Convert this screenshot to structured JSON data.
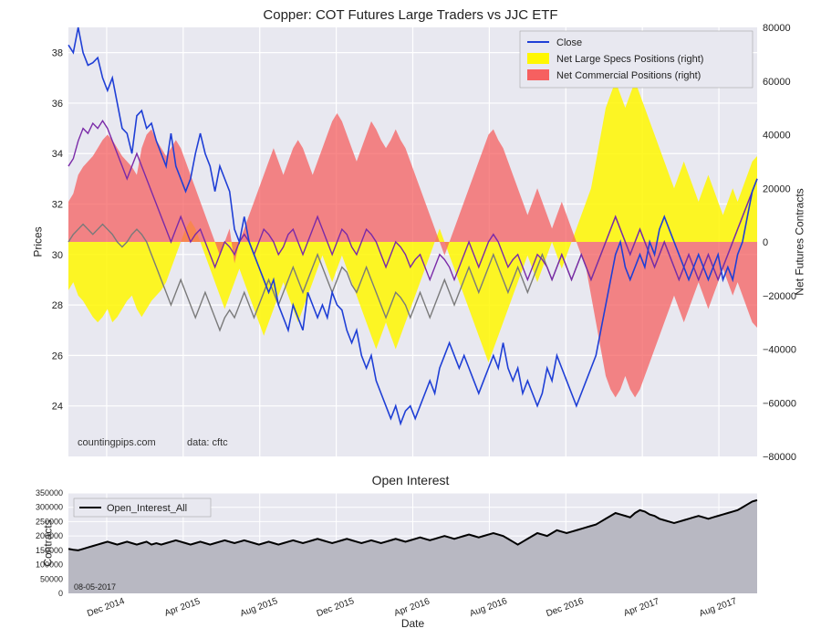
{
  "main": {
    "title": "Copper: COT Futures Large Traders vs JJC ETF",
    "y_left_label": "Prices",
    "y_right_label": "Net Futures Contracts",
    "background_color": "#e8e8f0",
    "grid_color": "#ffffff",
    "grid_width": 1.2,
    "watermark_left": "countingpips.com",
    "watermark_right": "data: cftc",
    "y_left": {
      "min": 22,
      "max": 39,
      "ticks": [
        24,
        26,
        28,
        30,
        32,
        34,
        36,
        38
      ]
    },
    "y_right": {
      "min": -80000,
      "max": 80000,
      "ticks": [
        -80000,
        -60000,
        -40000,
        -20000,
        0,
        20000,
        40000,
        60000,
        80000
      ]
    },
    "x_ticks": [
      "Dec 2014",
      "Apr 2015",
      "Aug 2015",
      "Dec 2015",
      "Apr 2016",
      "Aug 2016",
      "Dec 2016",
      "Apr 2017",
      "Aug 2017"
    ],
    "legend": {
      "items": [
        {
          "label": "Close",
          "type": "line",
          "color": "#1f3fd6"
        },
        {
          "label": "Net Large Specs Positions (right)",
          "type": "fill",
          "color": "#fff700"
        },
        {
          "label": "Net Commercial Positions (right)",
          "type": "fill",
          "color": "#f66060"
        }
      ]
    },
    "close": {
      "color": "#1f3fd6",
      "width": 1.6,
      "data": [
        38.3,
        38.0,
        39.0,
        38.0,
        37.5,
        37.6,
        37.8,
        37.0,
        36.5,
        37.0,
        36.0,
        35.0,
        34.8,
        34.0,
        35.5,
        35.7,
        35.0,
        35.2,
        34.5,
        34.0,
        33.5,
        34.8,
        33.5,
        33.0,
        32.5,
        33.0,
        34.0,
        34.8,
        34.0,
        33.5,
        32.5,
        33.5,
        33.0,
        32.5,
        31.0,
        30.5,
        31.5,
        30.5,
        30.0,
        29.5,
        29.0,
        28.5,
        29.0,
        28.0,
        27.5,
        27.0,
        28.0,
        27.5,
        27.0,
        28.5,
        28.0,
        27.5,
        28.0,
        27.5,
        28.5,
        28.0,
        27.8,
        27.0,
        26.5,
        27.0,
        26.0,
        25.5,
        26.0,
        25.0,
        24.5,
        24.0,
        23.5,
        24.0,
        23.3,
        23.8,
        24.0,
        23.5,
        24.0,
        24.5,
        25.0,
        24.5,
        25.5,
        26.0,
        26.5,
        26.0,
        25.5,
        26.0,
        25.5,
        25.0,
        24.5,
        25.0,
        25.5,
        26.0,
        25.5,
        26.5,
        25.5,
        25.0,
        25.5,
        24.5,
        25.0,
        24.5,
        24.0,
        24.5,
        25.5,
        25.0,
        26.0,
        25.5,
        25.0,
        24.5,
        24.0,
        24.5,
        25.0,
        25.5,
        26.0,
        27.0,
        28.0,
        29.0,
        30.0,
        30.5,
        29.5,
        29.0,
        29.5,
        30.0,
        29.5,
        30.5,
        30.0,
        31.0,
        31.5,
        31.0,
        30.5,
        30.0,
        29.5,
        29.0,
        29.5,
        30.0,
        29.5,
        29.0,
        29.5,
        30.0,
        29.0,
        29.5,
        29.0,
        30.0,
        30.5,
        31.5,
        32.5,
        33.0
      ]
    },
    "specs": {
      "color": "#fff700",
      "alpha": 0.85,
      "data": [
        -18000,
        -15000,
        -20000,
        -22000,
        -25000,
        -28000,
        -30000,
        -28000,
        -25000,
        -30000,
        -28000,
        -25000,
        -22000,
        -20000,
        -25000,
        -28000,
        -25000,
        -22000,
        -20000,
        -18000,
        -15000,
        -10000,
        -5000,
        0,
        5000,
        8000,
        5000,
        0,
        -5000,
        -10000,
        -15000,
        -20000,
        -25000,
        -20000,
        -15000,
        -10000,
        -15000,
        -20000,
        -25000,
        -30000,
        -35000,
        -30000,
        -25000,
        -20000,
        -15000,
        -20000,
        -25000,
        -30000,
        -25000,
        -20000,
        -15000,
        -10000,
        -5000,
        -10000,
        -15000,
        -10000,
        -5000,
        -10000,
        -15000,
        -20000,
        -25000,
        -30000,
        -35000,
        -40000,
        -35000,
        -30000,
        -35000,
        -40000,
        -35000,
        -30000,
        -25000,
        -20000,
        -15000,
        -10000,
        -5000,
        0,
        5000,
        0,
        -5000,
        -10000,
        -15000,
        -20000,
        -25000,
        -30000,
        -35000,
        -40000,
        -45000,
        -40000,
        -35000,
        -30000,
        -25000,
        -20000,
        -15000,
        -10000,
        -5000,
        -10000,
        -15000,
        -10000,
        -5000,
        0,
        -5000,
        -10000,
        -5000,
        0,
        5000,
        10000,
        15000,
        20000,
        30000,
        40000,
        50000,
        55000,
        60000,
        55000,
        50000,
        55000,
        60000,
        55000,
        50000,
        45000,
        40000,
        35000,
        30000,
        25000,
        20000,
        25000,
        30000,
        25000,
        20000,
        15000,
        20000,
        25000,
        20000,
        15000,
        10000,
        15000,
        20000,
        15000,
        20000,
        25000,
        30000,
        32000
      ]
    },
    "commercial": {
      "color": "#f66060",
      "alpha": 0.75,
      "data": [
        15000,
        18000,
        25000,
        28000,
        30000,
        32000,
        35000,
        38000,
        40000,
        38000,
        35000,
        32000,
        30000,
        28000,
        25000,
        35000,
        40000,
        42000,
        38000,
        35000,
        32000,
        35000,
        38000,
        35000,
        30000,
        25000,
        20000,
        15000,
        10000,
        5000,
        0,
        -5000,
        0,
        5000,
        -8000,
        0,
        5000,
        10000,
        15000,
        20000,
        25000,
        30000,
        35000,
        30000,
        25000,
        30000,
        35000,
        38000,
        35000,
        30000,
        25000,
        30000,
        35000,
        40000,
        45000,
        48000,
        45000,
        40000,
        35000,
        30000,
        35000,
        40000,
        45000,
        42000,
        38000,
        35000,
        38000,
        42000,
        38000,
        35000,
        30000,
        25000,
        20000,
        15000,
        10000,
        5000,
        0,
        -5000,
        0,
        5000,
        10000,
        15000,
        20000,
        25000,
        30000,
        35000,
        40000,
        42000,
        38000,
        35000,
        30000,
        25000,
        20000,
        15000,
        10000,
        15000,
        20000,
        15000,
        10000,
        5000,
        10000,
        15000,
        10000,
        5000,
        0,
        -5000,
        -10000,
        -20000,
        -30000,
        -40000,
        -50000,
        -55000,
        -58000,
        -55000,
        -50000,
        -55000,
        -58000,
        -55000,
        -50000,
        -45000,
        -40000,
        -35000,
        -30000,
        -25000,
        -20000,
        -25000,
        -30000,
        -25000,
        -20000,
        -15000,
        -20000,
        -25000,
        -20000,
        -15000,
        -10000,
        -15000,
        -20000,
        -15000,
        -20000,
        -25000,
        -30000,
        -32000
      ]
    },
    "purple_line": {
      "color": "#7a2aa8",
      "width": 1.4,
      "data": [
        33.5,
        33.8,
        34.5,
        35.0,
        34.8,
        35.2,
        35.0,
        35.3,
        35.0,
        34.5,
        34.0,
        33.5,
        33.0,
        33.5,
        34.0,
        33.5,
        33.0,
        32.5,
        32.0,
        31.5,
        31.0,
        30.5,
        31.0,
        31.5,
        31.0,
        30.5,
        30.8,
        31.0,
        30.5,
        30.0,
        29.5,
        30.0,
        30.5,
        30.3,
        30.0,
        30.5,
        30.8,
        30.5,
        30.0,
        30.5,
        31.0,
        30.8,
        30.5,
        30.0,
        30.3,
        30.8,
        31.0,
        30.5,
        30.0,
        30.5,
        31.0,
        31.5,
        31.0,
        30.5,
        30.0,
        30.5,
        31.0,
        30.8,
        30.3,
        30.0,
        30.5,
        31.0,
        30.8,
        30.5,
        30.0,
        29.5,
        30.0,
        30.5,
        30.3,
        30.0,
        29.5,
        29.8,
        30.0,
        29.5,
        29.0,
        29.5,
        30.0,
        29.8,
        29.5,
        29.0,
        29.5,
        30.0,
        30.5,
        30.0,
        29.5,
        30.0,
        30.5,
        30.8,
        30.5,
        30.0,
        29.5,
        29.8,
        30.0,
        29.5,
        29.0,
        29.5,
        30.0,
        29.8,
        29.5,
        29.0,
        29.5,
        30.0,
        29.5,
        29.0,
        29.5,
        30.0,
        29.5,
        29.0,
        29.5,
        30.0,
        30.5,
        31.0,
        31.5,
        31.0,
        30.5,
        30.0,
        30.5,
        31.0,
        30.5,
        30.0,
        29.5,
        30.0,
        30.5,
        30.0,
        29.5,
        29.0,
        29.5,
        30.0,
        29.5,
        29.0,
        29.5,
        30.0,
        29.5,
        29.0,
        29.5,
        30.0,
        30.5,
        31.0,
        31.5,
        32.0,
        32.5,
        33.0
      ]
    },
    "gray_line": {
      "color": "#7a7a7a",
      "width": 1.4,
      "data": [
        30.5,
        30.8,
        31.0,
        31.2,
        31.0,
        30.8,
        31.0,
        31.2,
        31.0,
        30.8,
        30.5,
        30.3,
        30.5,
        30.8,
        31.0,
        30.8,
        30.5,
        30.0,
        29.5,
        29.0,
        28.5,
        28.0,
        28.5,
        29.0,
        28.5,
        28.0,
        27.5,
        28.0,
        28.5,
        28.0,
        27.5,
        27.0,
        27.5,
        27.8,
        27.5,
        28.0,
        28.5,
        28.0,
        27.5,
        28.0,
        28.5,
        29.0,
        28.5,
        28.0,
        28.5,
        29.0,
        29.5,
        29.0,
        28.5,
        29.0,
        29.5,
        30.0,
        29.5,
        29.0,
        28.5,
        29.0,
        29.5,
        29.3,
        28.8,
        28.5,
        29.0,
        29.5,
        29.0,
        28.5,
        28.0,
        27.5,
        28.0,
        28.5,
        28.3,
        28.0,
        27.5,
        28.0,
        28.5,
        28.0,
        27.5,
        28.0,
        28.5,
        29.0,
        28.5,
        28.0,
        28.5,
        29.0,
        29.5,
        29.0,
        28.5,
        29.0,
        29.5,
        30.0,
        29.5,
        29.0,
        28.5,
        29.0,
        29.5,
        29.0,
        28.5,
        29.0,
        29.5,
        30.0,
        29.5,
        29.0,
        29.5,
        30.0,
        29.5,
        29.0,
        29.5,
        30.0,
        29.5,
        29.0,
        29.5,
        30.0,
        30.5,
        31.0,
        31.5,
        31.0,
        30.5,
        30.0,
        30.5,
        31.0,
        30.5,
        30.0,
        29.5,
        30.0,
        30.5,
        30.0,
        29.5,
        29.0,
        29.5,
        30.0,
        29.5,
        29.0,
        29.5,
        30.0,
        29.5,
        29.0,
        29.5,
        30.0,
        30.5,
        31.0,
        31.5,
        32.0,
        32.5,
        33.0
      ]
    }
  },
  "sub": {
    "title": "Open Interest",
    "y_label": "Contracts",
    "x_label": "Date",
    "background_color": "#e8e8f0",
    "grid_color": "#ffffff",
    "y": {
      "min": 0,
      "max": 350000,
      "ticks": [
        0,
        50000,
        100000,
        150000,
        200000,
        250000,
        300000,
        350000
      ]
    },
    "date_label": "08-05-2017",
    "legend": {
      "label": "Open_Interest_All",
      "color": "#000000"
    },
    "series": {
      "line_color": "#000000",
      "fill_color": "#b8b8c2",
      "line_width": 2,
      "data": [
        155000,
        152000,
        150000,
        155000,
        160000,
        165000,
        170000,
        175000,
        180000,
        175000,
        170000,
        175000,
        180000,
        175000,
        170000,
        175000,
        180000,
        170000,
        175000,
        170000,
        175000,
        180000,
        185000,
        180000,
        175000,
        170000,
        175000,
        180000,
        175000,
        170000,
        175000,
        180000,
        185000,
        180000,
        175000,
        180000,
        185000,
        180000,
        175000,
        170000,
        175000,
        180000,
        175000,
        170000,
        175000,
        180000,
        185000,
        180000,
        175000,
        180000,
        185000,
        190000,
        185000,
        180000,
        175000,
        180000,
        185000,
        190000,
        185000,
        180000,
        175000,
        180000,
        185000,
        180000,
        175000,
        180000,
        185000,
        190000,
        185000,
        180000,
        185000,
        190000,
        195000,
        190000,
        185000,
        190000,
        195000,
        200000,
        195000,
        190000,
        195000,
        200000,
        205000,
        200000,
        195000,
        200000,
        205000,
        210000,
        205000,
        200000,
        190000,
        180000,
        170000,
        180000,
        190000,
        200000,
        210000,
        205000,
        200000,
        210000,
        220000,
        215000,
        210000,
        215000,
        220000,
        225000,
        230000,
        235000,
        240000,
        250000,
        260000,
        270000,
        280000,
        275000,
        270000,
        265000,
        280000,
        290000,
        285000,
        275000,
        270000,
        260000,
        255000,
        250000,
        245000,
        250000,
        255000,
        260000,
        265000,
        270000,
        265000,
        260000,
        265000,
        270000,
        275000,
        280000,
        285000,
        290000,
        300000,
        310000,
        320000,
        325000
      ]
    }
  }
}
